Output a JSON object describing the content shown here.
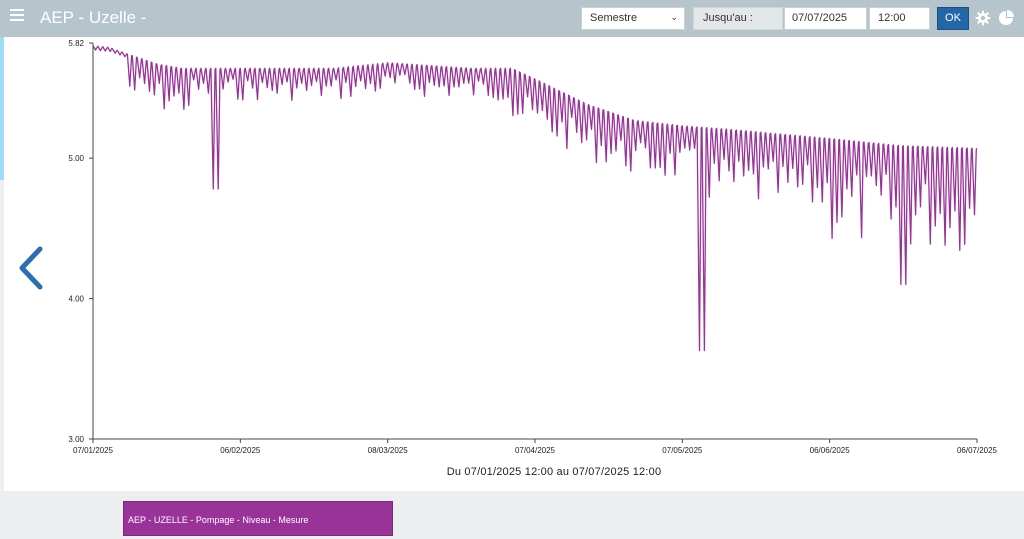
{
  "app": {
    "title": "AEP - Uzelle -"
  },
  "toolbar": {
    "period_select": "Semestre",
    "until_label": "Jusqu'au :",
    "date_value": "07/07/2025",
    "time_value": "12:00",
    "ok_label": "OK"
  },
  "icons": {
    "menu": "menu-icon",
    "settings": "gear-icon",
    "stats": "pie-chart-icon",
    "back": "chevron-left-icon"
  },
  "colors": {
    "series": "#993399",
    "header": "#b6c4cc",
    "ok_button": "#2566a8",
    "arrow": "#2b6fb3"
  },
  "range_caption": "Du 07/01/2025 12:00 au 07/07/2025 12:00",
  "legend": {
    "label": "AEP - UZELLE - Pompage - Niveau - Mesure"
  },
  "chart_data": {
    "type": "line",
    "xlabel": "",
    "ylabel": "",
    "ylim": [
      3.0,
      5.82
    ],
    "yticks": [
      "3.00",
      "4.00",
      "5.00",
      "5.82"
    ],
    "xticks": [
      "07/01/2025",
      "06/02/2025",
      "08/03/2025",
      "07/04/2025",
      "07/05/2025",
      "06/06/2025",
      "06/07/2025"
    ],
    "grid": false,
    "series": [
      {
        "name": "AEP - UZELLE - Pompage - Niveau - Mesure",
        "baseline": {
          "x": [
            "07/01/2025",
            "10/01/2025",
            "14/01/2025",
            "20/01/2025",
            "25/01/2025",
            "06/02/2025",
            "25/02/2025",
            "08/03/2025",
            "25/03/2025",
            "02/04/2025",
            "07/04/2025",
            "17/04/2025",
            "27/04/2025",
            "07/05/2025",
            "15/05/2025",
            "06/06/2025",
            "20/06/2025",
            "06/07/2025"
          ],
          "y": [
            5.8,
            5.79,
            5.74,
            5.67,
            5.64,
            5.64,
            5.64,
            5.68,
            5.64,
            5.64,
            5.56,
            5.39,
            5.27,
            5.23,
            5.21,
            5.14,
            5.09,
            5.07
          ]
        },
        "notable_minima": [
          {
            "x": "01/02/2025",
            "y": 4.78
          },
          {
            "x": "11/05/2025",
            "y": 3.63
          },
          {
            "x": "21/06/2025",
            "y": 4.1
          }
        ]
      }
    ]
  }
}
